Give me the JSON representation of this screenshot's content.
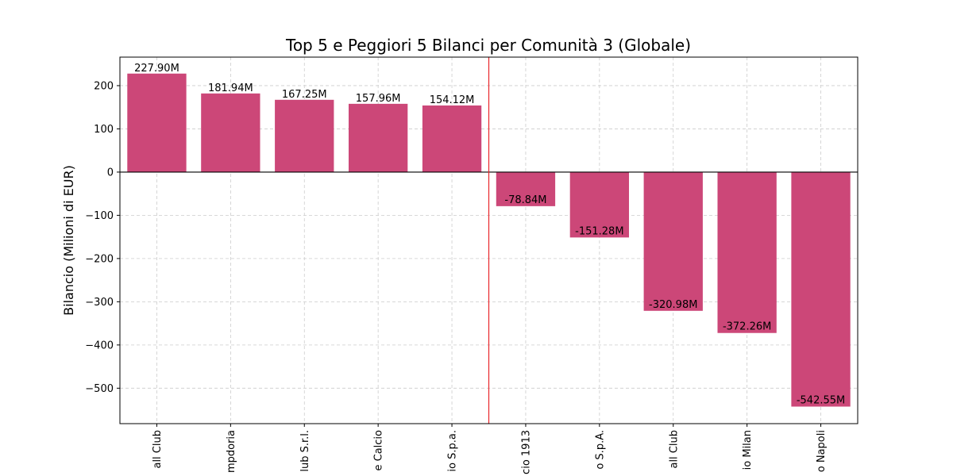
{
  "chart_data": {
    "type": "bar",
    "title": "Top 5 e Peggiori 5 Bilanci per Comunità 3 (Globale)",
    "xlabel": "",
    "ylabel": "Bilancio (Milioni di EUR)",
    "categories": [
      "all Club",
      "mpdoria",
      "lub S.r.l.",
      "e Calcio",
      "io S.p.a.",
      "cio 1913",
      "o S.p.A.",
      "all Club",
      "io Milan",
      "o Napoli"
    ],
    "values": [
      227.9,
      181.94,
      167.25,
      157.96,
      154.12,
      -78.84,
      -151.28,
      -320.98,
      -372.26,
      -542.55
    ],
    "value_labels": [
      "227.90M",
      "181.94M",
      "167.25M",
      "157.96M",
      "154.12M",
      "-78.84M",
      "-151.28M",
      "-320.98M",
      "-372.26M",
      "-542.55M"
    ],
    "ylim": [
      -582,
      266
    ],
    "yticks": [
      200,
      100,
      0,
      -100,
      -200,
      -300,
      -400,
      -500
    ],
    "ytick_labels": [
      "200",
      "100",
      "0",
      "−100",
      "−200",
      "−300",
      "−400",
      "−500"
    ],
    "grid": true,
    "bar_color": "#cc4778",
    "divider_color": "#e8262b"
  }
}
